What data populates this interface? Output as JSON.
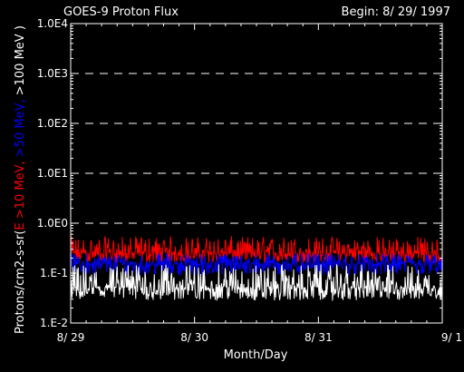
{
  "chart_data": {
    "type": "line",
    "title": "GOES-9 Proton Flux",
    "begin_label": "Begin: 8/ 29/ 1997",
    "xlabel": "Month/Day",
    "ylabel_parts": [
      {
        "text": "Protons/cm2-s-sr(",
        "color": "#ffffff"
      },
      {
        "text": "E >10 MeV, ",
        "color": "#ff0000"
      },
      {
        "text": ">50 MeV, ",
        "color": "#0000ff"
      },
      {
        "text": ">100 MeV )",
        "color": "#ffffff"
      }
    ],
    "y_scale": "log",
    "ylim": [
      0.01,
      10000
    ],
    "y_ticks": [
      "1.0E4",
      "1.0E3",
      "1.0E2",
      "1.0E1",
      "1.0E0",
      "1.E-1",
      "1.E-2"
    ],
    "x_ticks": [
      "8/ 29",
      "8/ 30",
      "8/ 31",
      "9/ 1"
    ],
    "x_range_days": [
      0,
      3
    ],
    "grid": "dashed horizontal at decades 1E0–1E3",
    "series": [
      {
        "name": ">10 MeV",
        "color": "#ff0000",
        "noise_band": [
          0.16,
          0.55
        ],
        "typical": 0.25
      },
      {
        "name": ">50 MeV",
        "color": "#0000ff",
        "noise_band": [
          0.09,
          0.25
        ],
        "typical": 0.15
      },
      {
        "name": ">100 MeV",
        "color": "#ffffff",
        "noise_band": [
          0.028,
          0.15
        ],
        "typical": 0.05
      }
    ]
  }
}
